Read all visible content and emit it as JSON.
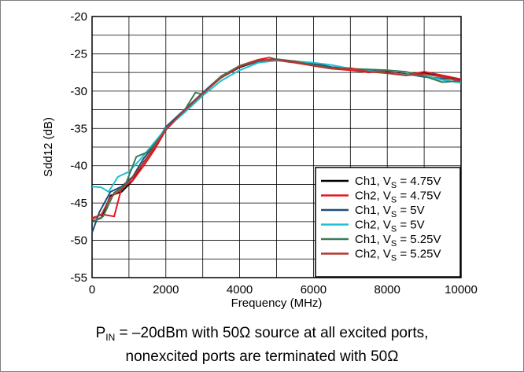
{
  "chart_data": {
    "type": "line",
    "xlabel": "Frequency (MHz)",
    "ylabel": "Sdd12 (dB)",
    "xlim": [
      0,
      10000
    ],
    "ylim": [
      -55,
      -20
    ],
    "xticks": [
      0,
      2000,
      4000,
      6000,
      8000,
      10000
    ],
    "yticks": [
      -20,
      -25,
      -30,
      -35,
      -40,
      -45,
      -50,
      -55
    ],
    "grid": true,
    "legend_position": "bottom-right",
    "series": [
      {
        "name_main": "Ch1, V",
        "name_sub": "S",
        "name_tail": " = 4.75V",
        "color": "#000000",
        "x": [
          0,
          250,
          500,
          800,
          1100,
          1400,
          1700,
          2000,
          2500,
          3000,
          3500,
          4000,
          4500,
          5000,
          5500,
          6000,
          6500,
          7000,
          7500,
          8000,
          8500,
          9000,
          9500,
          10000
        ],
        "y": [
          -47.5,
          -47.0,
          -44.0,
          -43.5,
          -42.0,
          -39.5,
          -37.5,
          -35.0,
          -32.8,
          -30.3,
          -28.2,
          -26.8,
          -26.0,
          -25.8,
          -26.0,
          -26.3,
          -26.8,
          -27.0,
          -27.3,
          -27.4,
          -27.8,
          -27.6,
          -28.0,
          -28.6
        ]
      },
      {
        "name_main": "Ch2, V",
        "name_sub": "S",
        "name_tail": " = 4.75V",
        "color": "#e8141b",
        "x": [
          0,
          250,
          600,
          800,
          1100,
          1400,
          1700,
          2000,
          2500,
          3000,
          3500,
          4000,
          4500,
          4800,
          5200,
          5500,
          6000,
          6500,
          7000,
          7500,
          8000,
          8500,
          9000,
          9500,
          10000
        ],
        "y": [
          -47.2,
          -46.5,
          -46.8,
          -43.0,
          -42.0,
          -40.0,
          -37.8,
          -35.2,
          -32.7,
          -30.4,
          -28.1,
          -26.6,
          -25.8,
          -25.5,
          -26.0,
          -26.2,
          -26.6,
          -27.0,
          -27.2,
          -27.5,
          -27.3,
          -27.9,
          -27.4,
          -27.9,
          -28.4
        ]
      },
      {
        "name_main": "Ch1, V",
        "name_sub": "S",
        "name_tail": " = 5V",
        "color": "#1f4e79",
        "x": [
          0,
          200,
          500,
          800,
          1100,
          1400,
          1700,
          2000,
          2500,
          3000,
          3500,
          4000,
          4500,
          5000,
          5500,
          6000,
          6500,
          7000,
          7500,
          8000,
          8500,
          9000,
          9500,
          10000
        ],
        "y": [
          -49.0,
          -46.2,
          -43.5,
          -42.8,
          -41.5,
          -39.0,
          -37.2,
          -34.8,
          -32.5,
          -30.2,
          -28.0,
          -26.7,
          -26.0,
          -25.9,
          -26.1,
          -26.4,
          -26.8,
          -27.0,
          -27.2,
          -27.6,
          -27.7,
          -28.1,
          -28.3,
          -28.5
        ]
      },
      {
        "name_main": "Ch2, V",
        "name_sub": "S",
        "name_tail": " = 5V",
        "color": "#1fbfd1",
        "x": [
          0,
          250,
          450,
          700,
          1000,
          1300,
          1600,
          2000,
          2500,
          3000,
          3500,
          4000,
          4500,
          5000,
          5500,
          6000,
          6500,
          7000,
          7500,
          8000,
          8500,
          9000,
          9500,
          10000
        ],
        "y": [
          -42.8,
          -42.9,
          -43.5,
          -41.5,
          -40.8,
          -39.2,
          -37.4,
          -35.0,
          -32.9,
          -30.6,
          -28.6,
          -27.2,
          -26.2,
          -25.9,
          -26.0,
          -26.2,
          -26.5,
          -27.0,
          -27.3,
          -27.6,
          -27.8,
          -27.9,
          -28.5,
          -28.9
        ]
      },
      {
        "name_main": "Ch1, V",
        "name_sub": "S",
        "name_tail": " = 5.25V",
        "color": "#3c7a58",
        "x": [
          0,
          300,
          600,
          900,
          1200,
          1500,
          1800,
          2100,
          2500,
          2800,
          3000,
          3500,
          4000,
          4500,
          5000,
          5500,
          6000,
          6500,
          7000,
          7500,
          8000,
          8500,
          9000,
          9500,
          10000
        ],
        "y": [
          -47.6,
          -46.8,
          -43.6,
          -42.6,
          -38.8,
          -38.2,
          -36.5,
          -34.6,
          -32.6,
          -30.2,
          -30.4,
          -28.0,
          -26.6,
          -25.9,
          -25.7,
          -26.0,
          -26.5,
          -26.9,
          -27.0,
          -27.1,
          -27.2,
          -27.4,
          -28.0,
          -28.8,
          -28.6
        ]
      },
      {
        "name_main": "Ch2, V",
        "name_sub": "S",
        "name_tail": " = 5.25V",
        "color": "#b4372e",
        "x": [
          0,
          250,
          500,
          800,
          1100,
          1400,
          1700,
          2000,
          2500,
          3000,
          3500,
          4000,
          4500,
          5000,
          5500,
          6000,
          6500,
          7000,
          7500,
          8000,
          8500,
          9000,
          9500,
          10000
        ],
        "y": [
          -47.0,
          -46.6,
          -44.2,
          -43.2,
          -41.6,
          -39.6,
          -37.4,
          -35.1,
          -32.6,
          -30.3,
          -28.2,
          -26.7,
          -25.9,
          -25.8,
          -26.1,
          -26.6,
          -27.0,
          -26.9,
          -27.4,
          -27.6,
          -27.9,
          -27.7,
          -28.1,
          -28.7
        ]
      }
    ]
  },
  "caption": {
    "line1_prefix": "P",
    "line1_sub": "IN",
    "line1_text": " = –20dBm with 50Ω source at all excited ports,",
    "line2_text": "nonexcited ports are terminated with 50Ω"
  }
}
